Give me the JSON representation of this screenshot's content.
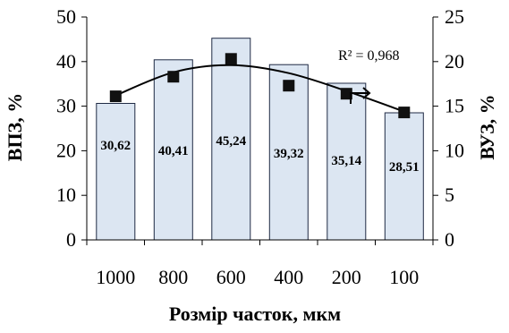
{
  "chart_data": {
    "type": "bar",
    "categories": [
      "1000",
      "800",
      "600",
      "400",
      "200",
      "100"
    ],
    "series": [
      {
        "axis": "left",
        "kind": "bar",
        "values": [
          30.62,
          40.41,
          45.24,
          39.32,
          35.14,
          28.51
        ],
        "data_labels": [
          "30,62",
          "40,41",
          "45,24",
          "39,32",
          "35,14",
          "28,51"
        ],
        "fill": "#dce6f2",
        "stroke": "#1f2a44"
      },
      {
        "axis": "right",
        "kind": "scatter",
        "values": [
          16.1,
          18.3,
          20.3,
          17.3,
          16.4,
          14.3
        ],
        "marker_color": "#111111"
      }
    ],
    "trendline": {
      "type": "polynomial",
      "axis": "right",
      "points": [
        {
          "x": "1000",
          "y": 16.2
        },
        {
          "x": "800",
          "y": 18.8
        },
        {
          "x": "600",
          "y": 19.6
        },
        {
          "x": "400",
          "y": 18.7
        },
        {
          "x": "200",
          "y": 16.7
        },
        {
          "x": "100",
          "y": 14.4
        }
      ],
      "r2_label": "R² = 0,968"
    },
    "xlabel": "Розмір часток, мкм",
    "ylabel_left": "ВПЗ, %",
    "ylabel_right": "ВУЗ, %",
    "ylim_left": [
      0,
      50
    ],
    "ylim_right": [
      0,
      25
    ],
    "yticks_left": [
      "0",
      "10",
      "20",
      "30",
      "40",
      "50"
    ],
    "yticks_right": [
      "0",
      "5",
      "10",
      "15",
      "20",
      "25"
    ],
    "grid": false,
    "arrow_annotation": "points-right-to-right-axis"
  }
}
